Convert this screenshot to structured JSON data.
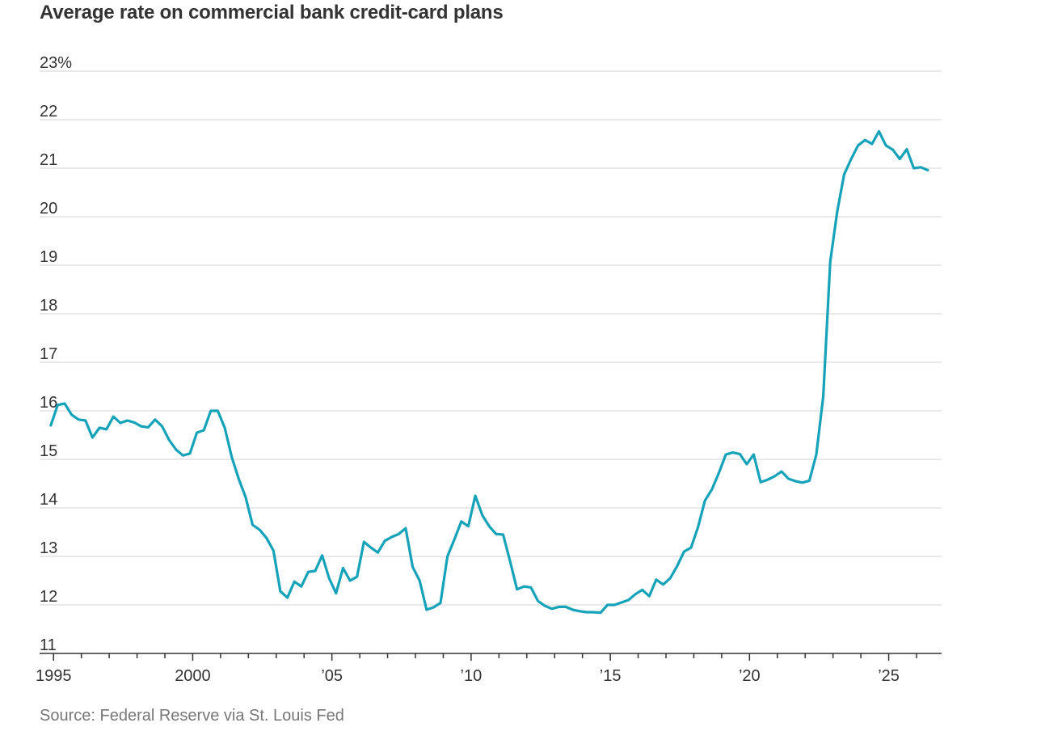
{
  "title": "Average rate on commercial bank credit-card plans",
  "source": "Source: Federal Reserve via St. Louis Fed",
  "colors": {
    "line": "#16a2b8",
    "grid": "#e2e2e2",
    "axis": "#333333",
    "text": "#333333",
    "muted": "#777777"
  },
  "chart_data": {
    "type": "line",
    "title": "Average rate on commercial bank credit-card plans",
    "xlabel": "",
    "ylabel": "",
    "ylim": [
      11,
      23
    ],
    "xlim": [
      1994.5,
      2026.9
    ],
    "grid": true,
    "y_ticks": [
      {
        "value": 23,
        "label": "23%"
      },
      {
        "value": 22,
        "label": "22"
      },
      {
        "value": 21,
        "label": "21"
      },
      {
        "value": 20,
        "label": "20"
      },
      {
        "value": 19,
        "label": "19"
      },
      {
        "value": 18,
        "label": "18"
      },
      {
        "value": 17,
        "label": "17"
      },
      {
        "value": 16,
        "label": "16"
      },
      {
        "value": 15,
        "label": "15"
      },
      {
        "value": 14,
        "label": "14"
      },
      {
        "value": 13,
        "label": "13"
      },
      {
        "value": 12,
        "label": "12"
      },
      {
        "value": 11,
        "label": "11"
      }
    ],
    "x_ticks": [
      {
        "value": 1995,
        "label": "1995"
      },
      {
        "value": 2000,
        "label": "2000"
      },
      {
        "value": 2005,
        "label": "’05"
      },
      {
        "value": 2010,
        "label": "’10"
      },
      {
        "value": 2015,
        "label": "’15"
      },
      {
        "value": 2020,
        "label": "’20"
      },
      {
        "value": 2025,
        "label": "’25"
      }
    ],
    "series": [
      {
        "x": [
          1994.9,
          1995.15,
          1995.4,
          1995.65,
          1995.9,
          1996.15,
          1996.4,
          1996.65,
          1996.9,
          1997.15,
          1997.4,
          1997.65,
          1997.9,
          1998.15,
          1998.4,
          1998.65,
          1998.9,
          1999.15,
          1999.4,
          1999.65,
          1999.9,
          2000.15,
          2000.4,
          2000.65,
          2000.9,
          2001.15,
          2001.4,
          2001.65,
          2001.9,
          2002.15,
          2002.4,
          2002.65,
          2002.9,
          2003.15,
          2003.4,
          2003.65,
          2003.9,
          2004.15,
          2004.4,
          2004.65,
          2004.9,
          2005.15,
          2005.4,
          2005.65,
          2005.9,
          2006.15,
          2006.4,
          2006.65,
          2006.9,
          2007.15,
          2007.4,
          2007.65,
          2007.9,
          2008.15,
          2008.4,
          2008.65,
          2008.9,
          2009.15,
          2009.4,
          2009.65,
          2009.9,
          2010.15,
          2010.4,
          2010.65,
          2010.9,
          2011.15,
          2011.4,
          2011.65,
          2011.9,
          2012.15,
          2012.4,
          2012.65,
          2012.9,
          2013.15,
          2013.4,
          2013.65,
          2013.9,
          2014.15,
          2014.4,
          2014.65,
          2014.9,
          2015.15,
          2015.4,
          2015.65,
          2015.9,
          2016.15,
          2016.4,
          2016.65,
          2016.9,
          2017.15,
          2017.4,
          2017.65,
          2017.9,
          2018.15,
          2018.4,
          2018.65,
          2018.9,
          2019.15,
          2019.4,
          2019.65,
          2019.9,
          2020.15,
          2020.4,
          2020.65,
          2020.9,
          2021.15,
          2021.4,
          2021.65,
          2021.9,
          2022.15,
          2022.4,
          2022.65,
          2022.9,
          2023.15,
          2023.4,
          2023.65,
          2023.9,
          2024.15,
          2024.4,
          2024.65,
          2024.9,
          2025.15,
          2025.4,
          2025.65,
          2025.9,
          2026.15,
          2026.4
        ],
        "y": [
          15.7,
          16.12,
          16.15,
          15.92,
          15.82,
          15.8,
          15.45,
          15.65,
          15.62,
          15.88,
          15.75,
          15.8,
          15.76,
          15.68,
          15.66,
          15.82,
          15.68,
          15.4,
          15.2,
          15.08,
          15.12,
          15.55,
          15.6,
          16.0,
          16.0,
          15.65,
          15.05,
          14.6,
          14.22,
          13.65,
          13.55,
          13.38,
          13.12,
          12.28,
          12.15,
          12.48,
          12.38,
          12.68,
          12.7,
          13.02,
          12.55,
          12.24,
          12.76,
          12.5,
          12.58,
          13.3,
          13.18,
          13.08,
          13.32,
          13.4,
          13.46,
          13.58,
          12.78,
          12.5,
          11.9,
          11.95,
          12.04,
          13.0,
          13.35,
          13.72,
          13.62,
          14.25,
          13.85,
          13.62,
          13.46,
          13.45,
          12.9,
          12.32,
          12.38,
          12.36,
          12.08,
          11.98,
          11.92,
          11.96,
          11.96,
          11.9,
          11.87,
          11.85,
          11.85,
          11.84,
          12.0,
          12.0,
          12.05,
          12.1,
          12.22,
          12.31,
          12.18,
          12.52,
          12.42,
          12.55,
          12.8,
          13.1,
          13.18,
          13.6,
          14.15,
          14.38,
          14.72,
          15.1,
          15.14,
          15.11,
          14.9,
          15.1,
          14.53,
          14.58,
          14.65,
          14.75,
          14.6,
          14.55,
          14.52,
          14.56,
          15.1,
          16.3,
          19.07,
          20.1,
          20.87,
          21.19,
          21.47,
          21.58,
          21.5,
          21.76,
          21.47,
          21.38,
          21.19,
          21.39,
          21.0,
          21.02,
          20.96
        ]
      }
    ]
  }
}
